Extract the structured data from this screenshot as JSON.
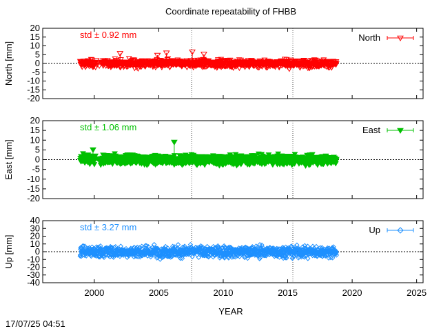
{
  "chart_data": {
    "type": "scatter",
    "title": "Coordinate repeatability of FHBB",
    "xlabel": "YEAR",
    "xlim": [
      1996,
      2025.5
    ],
    "xticks": [
      2000,
      2005,
      2010,
      2015,
      2020,
      2025
    ],
    "reference_lines_x": [
      2007.55,
      2015.4
    ],
    "zero_line": true,
    "timestamp": "17/07/25 04:51",
    "data_span": [
      1998.9,
      2018.8
    ],
    "panels": [
      {
        "name": "North",
        "ylabel": "North [mm]",
        "ylim": [
          -20,
          20
        ],
        "yticks": [
          20,
          15,
          10,
          5,
          0,
          -5,
          -10,
          -15,
          -20
        ],
        "std_label": "std ± 0.92 mm",
        "std_mm": 0.92,
        "color": "#ff0000",
        "marker": "triangle-down-open",
        "legend": "North",
        "legend_position": "top-right",
        "outliers": [
          {
            "x": 2002.0,
            "y": 5.7
          },
          {
            "x": 2004.9,
            "y": 4.7
          },
          {
            "x": 2005.6,
            "y": 6.0
          },
          {
            "x": 2007.6,
            "y": 6.6
          },
          {
            "x": 2008.5,
            "y": 5.3
          }
        ]
      },
      {
        "name": "East",
        "ylabel": "East [mm]",
        "ylim": [
          -20,
          20
        ],
        "yticks": [
          20,
          15,
          10,
          5,
          0,
          -5,
          -10,
          -15,
          -20
        ],
        "std_label": "std ± 1.06 mm",
        "std_mm": 1.06,
        "color": "#00c000",
        "marker": "triangle-down-filled",
        "legend": "East",
        "legend_position": "top-right",
        "outliers": [
          {
            "x": 1999.9,
            "y": 5.1
          },
          {
            "x": 2006.2,
            "y": 9.0
          }
        ]
      },
      {
        "name": "Up",
        "ylabel": "Up [mm]",
        "ylim": [
          -40,
          40
        ],
        "yticks": [
          40,
          30,
          20,
          10,
          0,
          -10,
          -20,
          -30,
          -40
        ],
        "std_label": "std ± 3.27 mm",
        "std_mm": 3.27,
        "color": "#1e90ff",
        "marker": "diamond-open",
        "legend": "Up",
        "legend_position": "top-right",
        "outliers": []
      }
    ]
  }
}
